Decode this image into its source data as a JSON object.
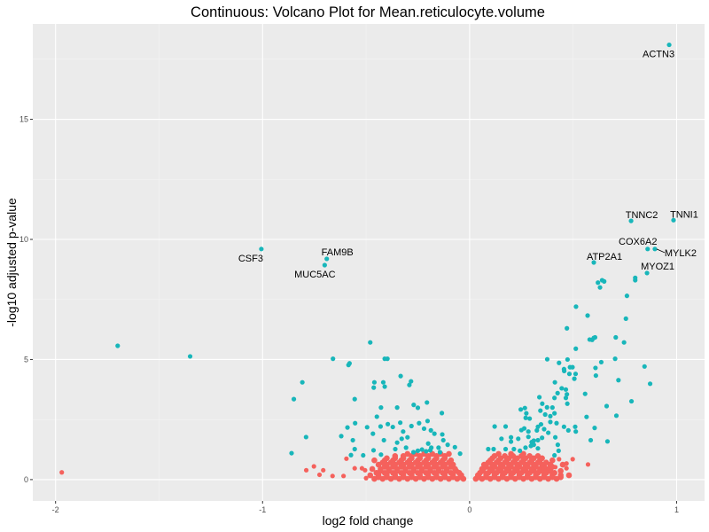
{
  "chart_data": {
    "type": "scatter",
    "title": "Continuous: Volcano Plot for Mean.reticulocyte.volume",
    "xlabel": "log2 fold change",
    "ylabel": "-log10 adjusted p-value",
    "xlim": [
      -2.11,
      1.135
    ],
    "ylim": [
      -0.89,
      18.97
    ],
    "xticks": [
      -2,
      -1,
      0,
      1
    ],
    "xtick_labels": [
      "-2",
      "-1",
      "0",
      "1"
    ],
    "yticks": [
      0,
      5,
      10,
      15
    ],
    "ytick_labels": [
      "0",
      "5",
      "10",
      "15"
    ],
    "grid": true,
    "legend": "none",
    "colors": {
      "significant": "#18B6BA",
      "not_significant": "#F5615C",
      "panel": "#EBEBEB",
      "grid": "#FFFFFF"
    },
    "labeled_points": [
      {
        "gene": "ACTN3",
        "x": 0.964,
        "y": 18.1
      },
      {
        "gene": "TNNI1",
        "x": 0.985,
        "y": 10.8
      },
      {
        "gene": "TNNC2",
        "x": 0.78,
        "y": 10.77
      },
      {
        "gene": "COX6A2",
        "x": 0.86,
        "y": 9.6
      },
      {
        "gene": "MYLK2",
        "x": 0.895,
        "y": 9.6
      },
      {
        "gene": "ATP2A1",
        "x": 0.6,
        "y": 9.04
      },
      {
        "gene": "MYOZ1",
        "x": 0.857,
        "y": 8.6
      },
      {
        "gene": "CSF3",
        "x": -1.006,
        "y": 9.6
      },
      {
        "gene": "FAM9B",
        "x": -0.69,
        "y": 9.19
      },
      {
        "gene": "MUC5AC",
        "x": -0.7,
        "y": 8.93
      }
    ],
    "significant_points": [
      [
        -1.7,
        5.57
      ],
      [
        -1.35,
        5.13
      ],
      [
        -0.48,
        5.71
      ],
      [
        -0.66,
        5.03
      ],
      [
        -0.41,
        5.03
      ],
      [
        -0.397,
        5.03
      ],
      [
        -0.585,
        4.77
      ],
      [
        -0.58,
        4.84
      ],
      [
        -0.808,
        4.05
      ],
      [
        -0.849,
        3.35
      ],
      [
        -0.555,
        3.35
      ],
      [
        -0.46,
        4.05
      ],
      [
        -0.463,
        3.83
      ],
      [
        -0.417,
        4.05
      ],
      [
        -0.41,
        3.87
      ],
      [
        -0.333,
        4.31
      ],
      [
        -0.283,
        4.09
      ],
      [
        -0.291,
        3.94
      ],
      [
        -0.206,
        3.21
      ],
      [
        -0.27,
        3.11
      ],
      [
        -0.25,
        2.99
      ],
      [
        -0.428,
        3.0
      ],
      [
        -0.35,
        3.0
      ],
      [
        -0.134,
        2.77
      ],
      [
        -0.448,
        2.62
      ],
      [
        -0.553,
        2.35
      ],
      [
        -0.59,
        2.17
      ],
      [
        -0.495,
        2.18
      ],
      [
        -0.62,
        1.81
      ],
      [
        -0.564,
        1.64
      ],
      [
        -0.555,
        1.27
      ],
      [
        -0.573,
        1.02
      ],
      [
        -0.514,
        1.01
      ],
      [
        -0.464,
        1.22
      ],
      [
        -0.428,
        1.04
      ],
      [
        -0.414,
        1.64
      ],
      [
        -0.467,
        1.91
      ],
      [
        -0.43,
        2.21
      ],
      [
        -0.395,
        2.31
      ],
      [
        -0.371,
        2.19
      ],
      [
        -0.335,
        2.37
      ],
      [
        -0.321,
        2.0
      ],
      [
        -0.328,
        1.7
      ],
      [
        -0.3,
        1.76
      ],
      [
        -0.281,
        2.23
      ],
      [
        -0.244,
        2.35
      ],
      [
        -0.203,
        2.44
      ],
      [
        -0.22,
        2.12
      ],
      [
        -0.187,
        2.05
      ],
      [
        -0.17,
        1.91
      ],
      [
        -0.132,
        1.88
      ],
      [
        -0.127,
        1.64
      ],
      [
        -0.106,
        1.45
      ],
      [
        -0.071,
        1.35
      ],
      [
        -0.046,
        1.08
      ],
      [
        -0.359,
        1.27
      ],
      [
        -0.35,
        1.54
      ],
      [
        -0.307,
        1.33
      ],
      [
        -0.271,
        1.14
      ],
      [
        -0.2,
        1.5
      ],
      [
        -0.185,
        1.33
      ],
      [
        -0.15,
        1.33
      ],
      [
        -0.143,
        1.14
      ],
      [
        -0.25,
        1.2
      ],
      [
        -0.23,
        1.25
      ],
      [
        -0.21,
        1.18
      ],
      [
        -0.19,
        1.22
      ],
      [
        -0.79,
        1.77
      ],
      [
        -0.86,
        1.1
      ],
      [
        0.121,
        2.21
      ],
      [
        0.174,
        2.21
      ],
      [
        0.154,
        1.7
      ],
      [
        0.2,
        1.76
      ],
      [
        0.2,
        1.58
      ],
      [
        0.235,
        1.7
      ],
      [
        0.09,
        1.27
      ],
      [
        0.116,
        1.27
      ],
      [
        0.174,
        1.27
      ],
      [
        0.214,
        1.27
      ],
      [
        0.243,
        1.2
      ],
      [
        0.247,
        2.92
      ],
      [
        0.267,
        2.98
      ],
      [
        0.274,
        2.76
      ],
      [
        0.271,
        2.57
      ],
      [
        0.29,
        2.54
      ],
      [
        0.25,
        2.06
      ],
      [
        0.264,
        2.13
      ],
      [
        0.284,
        2.0
      ],
      [
        0.284,
        1.78
      ],
      [
        0.3,
        1.56
      ],
      [
        0.31,
        1.45
      ],
      [
        0.296,
        1.4
      ],
      [
        0.27,
        1.33
      ],
      [
        0.337,
        3.43
      ],
      [
        0.351,
        3.16
      ],
      [
        0.374,
        3.01
      ],
      [
        0.342,
        2.87
      ],
      [
        0.365,
        2.71
      ],
      [
        0.375,
        5.01
      ],
      [
        0.432,
        4.86
      ],
      [
        0.473,
        5.0
      ],
      [
        0.457,
        4.52
      ],
      [
        0.485,
        4.68
      ],
      [
        0.497,
        4.68
      ],
      [
        0.412,
        4.05
      ],
      [
        0.456,
        4.6
      ],
      [
        0.513,
        5.45
      ],
      [
        0.592,
        5.82
      ],
      [
        0.606,
        5.92
      ],
      [
        0.706,
        5.92
      ],
      [
        0.746,
        5.71
      ],
      [
        0.636,
        4.89
      ],
      [
        0.703,
        5.03
      ],
      [
        0.608,
        4.65
      ],
      [
        0.61,
        4.33
      ],
      [
        0.506,
        4.2
      ],
      [
        0.512,
        4.4
      ],
      [
        0.482,
        4.4
      ],
      [
        0.41,
        3.4
      ],
      [
        0.425,
        3.6
      ],
      [
        0.445,
        3.8
      ],
      [
        0.465,
        3.75
      ],
      [
        0.47,
        3.55
      ],
      [
        0.465,
        3.4
      ],
      [
        0.558,
        3.57
      ],
      [
        0.719,
        4.14
      ],
      [
        0.845,
        4.71
      ],
      [
        0.872,
        3.99
      ],
      [
        0.782,
        3.26
      ],
      [
        0.662,
        3.06
      ],
      [
        0.709,
        2.66
      ],
      [
        0.565,
        2.61
      ],
      [
        0.604,
        2.15
      ],
      [
        0.585,
        1.64
      ],
      [
        0.666,
        1.59
      ],
      [
        0.472,
        3.16
      ],
      [
        0.4,
        3.0
      ],
      [
        0.41,
        2.76
      ],
      [
        0.39,
        2.64
      ],
      [
        0.42,
        2.35
      ],
      [
        0.456,
        2.2
      ],
      [
        0.477,
        2.05
      ],
      [
        0.51,
        2.2
      ],
      [
        0.513,
        2.0
      ],
      [
        0.414,
        1.76
      ],
      [
        0.426,
        1.45
      ],
      [
        0.43,
        1.2
      ],
      [
        0.41,
        1.01
      ],
      [
        0.33,
        2.2
      ],
      [
        0.325,
        2.05
      ],
      [
        0.345,
        2.3
      ],
      [
        0.36,
        2.1
      ],
      [
        0.38,
        1.95
      ],
      [
        0.39,
        2.4
      ],
      [
        0.33,
        1.64
      ],
      [
        0.35,
        1.74
      ],
      [
        0.31,
        1.62
      ],
      [
        0.33,
        1.3
      ],
      [
        0.514,
        7.2
      ],
      [
        0.57,
        6.83
      ],
      [
        0.58,
        5.83
      ],
      [
        0.6,
        5.9
      ],
      [
        0.63,
        8.0
      ],
      [
        0.62,
        8.2
      ],
      [
        0.64,
        8.3
      ],
      [
        0.65,
        8.25
      ],
      [
        0.76,
        7.65
      ],
      [
        0.8,
        8.3
      ],
      [
        0.755,
        6.7
      ],
      [
        0.8,
        8.4
      ],
      [
        0.47,
        6.3
      ]
    ],
    "nonsignificant_points": [
      [
        -1.97,
        0.3
      ],
      [
        -0.595,
        0.87
      ],
      [
        -0.789,
        0.39
      ],
      [
        -0.752,
        0.55
      ],
      [
        -0.707,
        0.39
      ],
      [
        -0.725,
        0.2
      ],
      [
        -0.662,
        0.15
      ],
      [
        -0.609,
        0.15
      ],
      [
        -0.555,
        0.47
      ],
      [
        -0.52,
        0.47
      ],
      [
        -0.505,
        0.39
      ],
      [
        -0.5,
        0.06
      ],
      [
        0.572,
        0.63
      ],
      [
        0.498,
        0.85
      ],
      [
        0.432,
        0.85
      ],
      [
        0.468,
        0.67
      ],
      [
        0.468,
        0.47
      ],
      [
        0.414,
        0.52
      ],
      [
        0.39,
        0.33
      ],
      [
        0.357,
        0.37
      ]
    ],
    "nonsignificant_cloud": [
      {
        "y": 0.03,
        "x": [
          -0.46,
          -0.42,
          -0.38,
          -0.34,
          -0.3,
          -0.26,
          -0.22,
          -0.18,
          -0.14,
          -0.1,
          -0.06,
          -0.03,
          0.03,
          0.06,
          0.1,
          0.14,
          0.18,
          0.22,
          0.26,
          0.3,
          0.34,
          0.38,
          0.42
        ]
      },
      {
        "y": 0.1,
        "x": [
          -0.44,
          -0.4,
          -0.36,
          -0.32,
          -0.28,
          -0.24,
          -0.2,
          -0.16,
          -0.12,
          -0.08,
          -0.045,
          0.045,
          0.08,
          0.12,
          0.16,
          0.2,
          0.24,
          0.28,
          0.32,
          0.36,
          0.4,
          0.44
        ]
      },
      {
        "y": 0.18,
        "x": [
          -0.48,
          -0.44,
          -0.4,
          -0.36,
          -0.32,
          -0.28,
          -0.24,
          -0.2,
          -0.16,
          -0.12,
          -0.08,
          -0.04,
          0.04,
          0.08,
          0.12,
          0.16,
          0.2,
          0.24,
          0.28,
          0.32,
          0.36,
          0.4,
          0.44,
          0.48
        ]
      },
      {
        "y": 0.28,
        "x": [
          -0.45,
          -0.41,
          -0.37,
          -0.33,
          -0.29,
          -0.25,
          -0.21,
          -0.17,
          -0.13,
          -0.09,
          -0.05,
          0.05,
          0.09,
          0.13,
          0.17,
          0.21,
          0.25,
          0.29,
          0.33,
          0.37,
          0.41
        ]
      },
      {
        "y": 0.36,
        "x": [
          -0.43,
          -0.39,
          -0.35,
          -0.31,
          -0.27,
          -0.23,
          -0.19,
          -0.15,
          -0.11,
          -0.065,
          0.065,
          0.11,
          0.15,
          0.19,
          0.23,
          0.27,
          0.31,
          0.35,
          0.39,
          0.44
        ]
      },
      {
        "y": 0.44,
        "x": [
          -0.47,
          -0.43,
          -0.39,
          -0.35,
          -0.31,
          -0.27,
          -0.23,
          -0.19,
          -0.15,
          -0.11,
          -0.07,
          0.06,
          0.1,
          0.14,
          0.18,
          0.22,
          0.26,
          0.3,
          0.34,
          0.38
        ]
      },
      {
        "y": 0.53,
        "x": [
          -0.41,
          -0.37,
          -0.33,
          -0.29,
          -0.25,
          -0.21,
          -0.17,
          -0.13,
          -0.09,
          0.08,
          0.12,
          0.16,
          0.2,
          0.24,
          0.28,
          0.32,
          0.36,
          0.4
        ]
      },
      {
        "y": 0.62,
        "x": [
          -0.44,
          -0.4,
          -0.36,
          -0.32,
          -0.28,
          -0.24,
          -0.2,
          -0.16,
          -0.12,
          -0.08,
          0.07,
          0.11,
          0.15,
          0.19,
          0.23,
          0.27,
          0.31,
          0.35,
          0.39,
          0.45
        ]
      },
      {
        "y": 0.71,
        "x": [
          -0.42,
          -0.38,
          -0.34,
          -0.3,
          -0.26,
          -0.22,
          -0.18,
          -0.14,
          -0.1,
          0.09,
          0.13,
          0.17,
          0.21,
          0.25,
          0.29,
          0.33,
          0.37
        ]
      },
      {
        "y": 0.8,
        "x": [
          -0.46,
          -0.41,
          -0.37,
          -0.33,
          -0.29,
          -0.25,
          -0.21,
          -0.17,
          -0.13,
          -0.09,
          0.1,
          0.14,
          0.18,
          0.22,
          0.26,
          0.3,
          0.34,
          0.4
        ]
      },
      {
        "y": 0.89,
        "x": [
          -0.4,
          -0.36,
          -0.32,
          -0.28,
          -0.24,
          -0.2,
          -0.16,
          -0.12,
          0.11,
          0.15,
          0.19,
          0.23,
          0.27,
          0.31,
          0.35
        ]
      },
      {
        "y": 0.98,
        "x": [
          -0.36,
          -0.32,
          -0.28,
          -0.24,
          -0.2,
          -0.16,
          -0.12,
          0.12,
          0.17,
          0.21,
          0.25,
          0.29,
          0.33
        ]
      },
      {
        "y": 1.07,
        "x": [
          -0.3,
          -0.26,
          -0.22,
          -0.18,
          -0.14,
          -0.1,
          0.14,
          0.2,
          0.26
        ]
      }
    ]
  }
}
